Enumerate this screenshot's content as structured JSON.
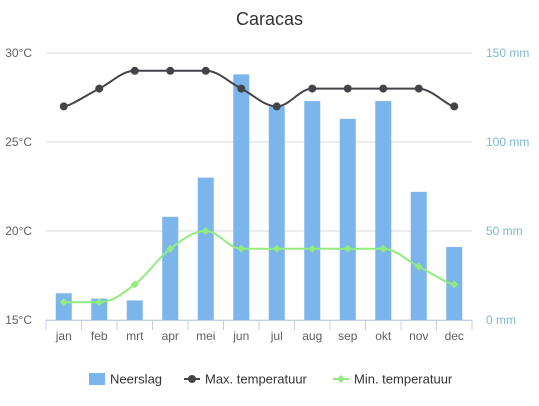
{
  "chart_data": {
    "title": "Caracas",
    "categories": [
      "jan",
      "feb",
      "mrt",
      "apr",
      "mei",
      "jun",
      "jul",
      "aug",
      "sep",
      "okt",
      "nov",
      "dec"
    ],
    "y_left": {
      "min": 15,
      "max": 30,
      "ticks": [
        15,
        20,
        25,
        30
      ],
      "tick_labels": [
        "15°C",
        "20°C",
        "25°C",
        "30°C"
      ]
    },
    "y_right": {
      "min": 0,
      "max": 150,
      "ticks": [
        0,
        50,
        100,
        150
      ],
      "tick_labels": [
        "0 mm",
        "50 mm",
        "100 mm",
        "150 mm"
      ]
    },
    "grid": true,
    "legend_position": "bottom-center",
    "series": [
      {
        "name": "Neerslag",
        "type": "bar",
        "axis": "right",
        "color": "#7cb5ec",
        "values": [
          15,
          12,
          11,
          58,
          80,
          138,
          120,
          123,
          113,
          123,
          72,
          41
        ]
      },
      {
        "name": "Max. temperatuur",
        "type": "line",
        "axis": "left",
        "color": "#434348",
        "values": [
          27,
          28,
          29,
          29,
          29,
          28,
          27,
          28,
          28,
          28,
          28,
          27
        ]
      },
      {
        "name": "Min. temperatuur",
        "type": "line",
        "axis": "left",
        "color": "#90ed7d",
        "values": [
          16,
          16,
          17,
          19,
          20,
          19,
          19,
          19,
          19,
          19,
          18,
          17
        ]
      }
    ]
  }
}
